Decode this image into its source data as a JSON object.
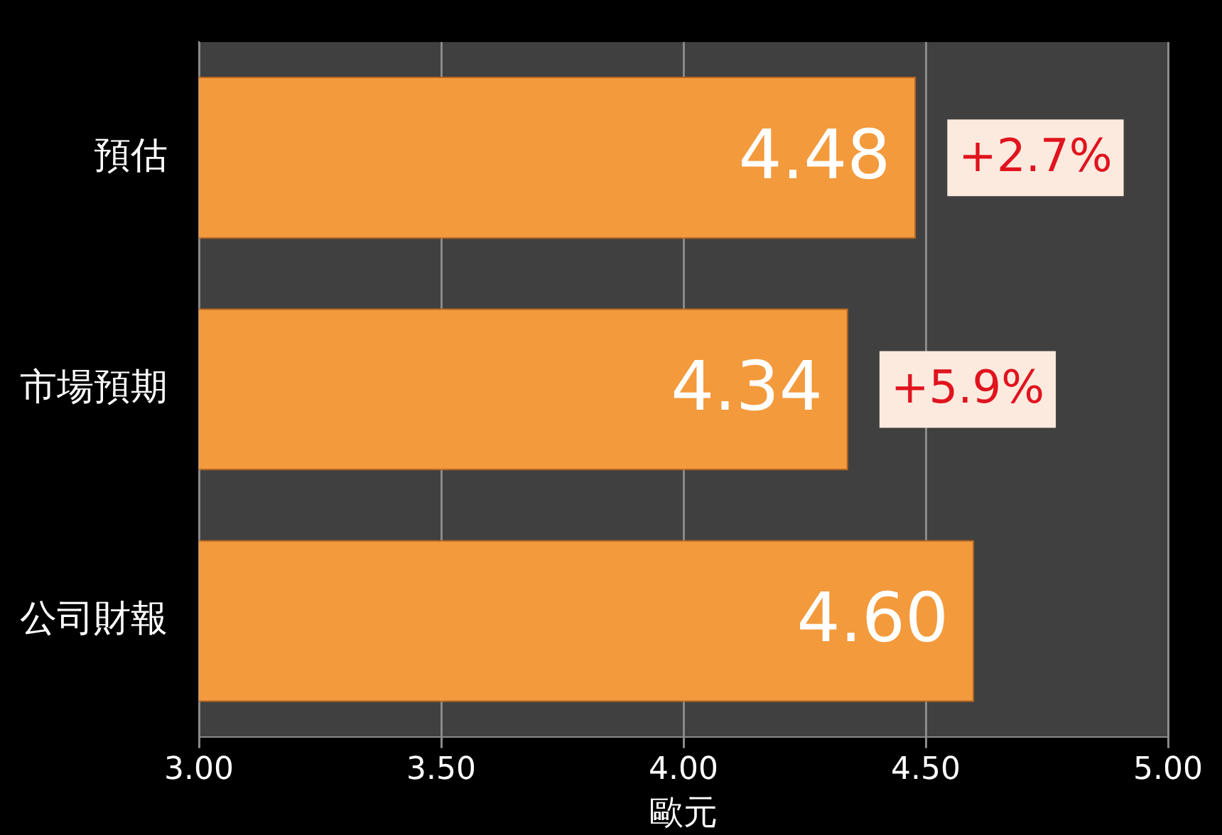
{
  "chart_data": {
    "type": "bar",
    "orientation": "horizontal",
    "xlabel": "歐元",
    "categories": [
      "預估",
      "市場預期",
      "公司財報"
    ],
    "values": [
      4.48,
      4.34,
      4.6
    ],
    "color": "#f39a3c",
    "value_labels": [
      "4.48",
      "4.34",
      "4.60"
    ],
    "xlim": [
      3,
      5
    ],
    "xticks": [
      {
        "value": 3,
        "label": "3.00"
      },
      {
        "value": 3.5,
        "label": "3.50"
      },
      {
        "value": 4,
        "label": "4.00"
      },
      {
        "value": 4.5,
        "label": "4.50"
      },
      {
        "value": 5,
        "label": "5.00"
      }
    ],
    "grid": "x",
    "legend": false,
    "annotations": [
      {
        "text": "+2.7%",
        "x": 4.48,
        "y": "預估"
      },
      {
        "text": "+5.9%",
        "x": 4.34,
        "y": "市場預期"
      }
    ]
  }
}
